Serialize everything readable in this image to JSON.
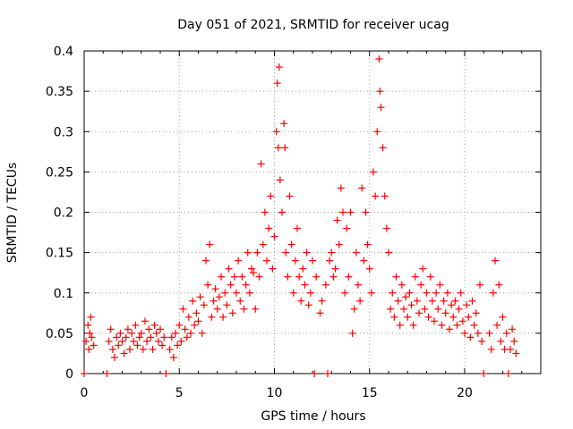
{
  "chart_data": {
    "type": "scatter",
    "title": "Day 051 of 2021, SRMTID for receiver ucag",
    "xlabel": "GPS time / hours",
    "ylabel": "SRMTID / TECUs",
    "xlim": [
      0,
      24
    ],
    "ylim": [
      0,
      0.4
    ],
    "x_ticks": [
      0,
      5,
      10,
      15,
      20
    ],
    "y_ticks": [
      0,
      0.05,
      0.1,
      0.15,
      0.2,
      0.25,
      0.3,
      0.35,
      0.4
    ],
    "x_tick_labels": [
      "0",
      "5",
      "10",
      "15",
      "20"
    ],
    "y_tick_labels": [
      "0",
      "0.05",
      "0.1",
      "0.15",
      "0.2",
      "0.25",
      "0.3",
      "0.35",
      "0.4"
    ],
    "grid": true,
    "marker": "+",
    "color": "#ff0000",
    "series": [
      {
        "name": "SRMTID",
        "points": [
          [
            0.0,
            0.0
          ],
          [
            0.1,
            0.04
          ],
          [
            0.2,
            0.06
          ],
          [
            0.25,
            0.03
          ],
          [
            0.3,
            0.05
          ],
          [
            0.35,
            0.07
          ],
          [
            0.4,
            0.045
          ],
          [
            0.5,
            0.035
          ],
          [
            1.2,
            0.0
          ],
          [
            1.3,
            0.04
          ],
          [
            1.4,
            0.055
          ],
          [
            1.5,
            0.03
          ],
          [
            1.6,
            0.02
          ],
          [
            1.7,
            0.045
          ],
          [
            1.8,
            0.035
          ],
          [
            1.9,
            0.05
          ],
          [
            2.0,
            0.04
          ],
          [
            2.1,
            0.025
          ],
          [
            2.2,
            0.045
          ],
          [
            2.3,
            0.055
          ],
          [
            2.4,
            0.03
          ],
          [
            2.5,
            0.05
          ],
          [
            2.6,
            0.04
          ],
          [
            2.7,
            0.06
          ],
          [
            2.8,
            0.035
          ],
          [
            2.9,
            0.045
          ],
          [
            3.0,
            0.05
          ],
          [
            3.1,
            0.03
          ],
          [
            3.2,
            0.065
          ],
          [
            3.3,
            0.04
          ],
          [
            3.4,
            0.055
          ],
          [
            3.5,
            0.045
          ],
          [
            3.6,
            0.03
          ],
          [
            3.7,
            0.06
          ],
          [
            3.8,
            0.05
          ],
          [
            3.9,
            0.04
          ],
          [
            4.0,
            0.055
          ],
          [
            4.1,
            0.035
          ],
          [
            4.2,
            0.045
          ],
          [
            4.3,
            0.0
          ],
          [
            4.5,
            0.03
          ],
          [
            4.6,
            0.045
          ],
          [
            4.7,
            0.02
          ],
          [
            4.8,
            0.05
          ],
          [
            4.9,
            0.035
          ],
          [
            5.0,
            0.06
          ],
          [
            5.1,
            0.04
          ],
          [
            5.2,
            0.08
          ],
          [
            5.3,
            0.055
          ],
          [
            5.4,
            0.045
          ],
          [
            5.5,
            0.07
          ],
          [
            5.6,
            0.05
          ],
          [
            5.7,
            0.09
          ],
          [
            5.8,
            0.06
          ],
          [
            5.9,
            0.075
          ],
          [
            6.0,
            0.065
          ],
          [
            6.1,
            0.095
          ],
          [
            6.2,
            0.05
          ],
          [
            6.3,
            0.085
          ],
          [
            6.4,
            0.14
          ],
          [
            6.5,
            0.11
          ],
          [
            6.6,
            0.16
          ],
          [
            6.7,
            0.07
          ],
          [
            6.8,
            0.09
          ],
          [
            6.9,
            0.105
          ],
          [
            7.0,
            0.08
          ],
          [
            7.1,
            0.095
          ],
          [
            7.2,
            0.12
          ],
          [
            7.3,
            0.07
          ],
          [
            7.4,
            0.1
          ],
          [
            7.5,
            0.085
          ],
          [
            7.6,
            0.13
          ],
          [
            7.7,
            0.11
          ],
          [
            7.8,
            0.075
          ],
          [
            7.9,
            0.12
          ],
          [
            8.0,
            0.1
          ],
          [
            8.1,
            0.14
          ],
          [
            8.2,
            0.09
          ],
          [
            8.3,
            0.12
          ],
          [
            8.4,
            0.08
          ],
          [
            8.5,
            0.11
          ],
          [
            8.6,
            0.15
          ],
          [
            8.7,
            0.1
          ],
          [
            8.8,
            0.13
          ],
          [
            8.9,
            0.125
          ],
          [
            9.0,
            0.08
          ],
          [
            9.1,
            0.15
          ],
          [
            9.2,
            0.12
          ],
          [
            9.3,
            0.26
          ],
          [
            9.4,
            0.16
          ],
          [
            9.5,
            0.2
          ],
          [
            9.6,
            0.14
          ],
          [
            9.7,
            0.18
          ],
          [
            9.8,
            0.22
          ],
          [
            9.9,
            0.13
          ],
          [
            10.0,
            0.17
          ],
          [
            10.1,
            0.3
          ],
          [
            10.15,
            0.36
          ],
          [
            10.2,
            0.28
          ],
          [
            10.25,
            0.38
          ],
          [
            10.3,
            0.24
          ],
          [
            10.4,
            0.2
          ],
          [
            10.5,
            0.31
          ],
          [
            10.55,
            0.28
          ],
          [
            10.6,
            0.15
          ],
          [
            10.7,
            0.12
          ],
          [
            10.8,
            0.22
          ],
          [
            10.9,
            0.16
          ],
          [
            11.0,
            0.1
          ],
          [
            11.1,
            0.14
          ],
          [
            11.2,
            0.18
          ],
          [
            11.3,
            0.12
          ],
          [
            11.4,
            0.09
          ],
          [
            11.5,
            0.13
          ],
          [
            11.6,
            0.11
          ],
          [
            11.7,
            0.15
          ],
          [
            11.8,
            0.085
          ],
          [
            11.9,
            0.1
          ],
          [
            12.0,
            0.14
          ],
          [
            12.1,
            0.0
          ],
          [
            12.2,
            0.12
          ],
          [
            12.4,
            0.075
          ],
          [
            12.5,
            0.09
          ],
          [
            12.7,
            0.11
          ],
          [
            12.8,
            0.0
          ],
          [
            12.9,
            0.14
          ],
          [
            13.0,
            0.15
          ],
          [
            13.1,
            0.12
          ],
          [
            13.2,
            0.13
          ],
          [
            13.3,
            0.19
          ],
          [
            13.4,
            0.16
          ],
          [
            13.5,
            0.23
          ],
          [
            13.6,
            0.2
          ],
          [
            13.7,
            0.1
          ],
          [
            13.8,
            0.18
          ],
          [
            13.9,
            0.12
          ],
          [
            14.0,
            0.2
          ],
          [
            14.1,
            0.05
          ],
          [
            14.2,
            0.08
          ],
          [
            14.3,
            0.15
          ],
          [
            14.4,
            0.11
          ],
          [
            14.5,
            0.09
          ],
          [
            14.6,
            0.23
          ],
          [
            14.7,
            0.14
          ],
          [
            14.8,
            0.2
          ],
          [
            14.9,
            0.16
          ],
          [
            15.0,
            0.13
          ],
          [
            15.1,
            0.1
          ],
          [
            15.2,
            0.25
          ],
          [
            15.3,
            0.22
          ],
          [
            15.4,
            0.3
          ],
          [
            15.5,
            0.39
          ],
          [
            15.55,
            0.35
          ],
          [
            15.6,
            0.33
          ],
          [
            15.7,
            0.28
          ],
          [
            15.8,
            0.22
          ],
          [
            15.9,
            0.18
          ],
          [
            16.0,
            0.15
          ],
          [
            16.1,
            0.08
          ],
          [
            16.2,
            0.1
          ],
          [
            16.3,
            0.07
          ],
          [
            16.4,
            0.12
          ],
          [
            16.5,
            0.09
          ],
          [
            16.6,
            0.06
          ],
          [
            16.7,
            0.11
          ],
          [
            16.8,
            0.08
          ],
          [
            16.9,
            0.095
          ],
          [
            17.0,
            0.07
          ],
          [
            17.1,
            0.1
          ],
          [
            17.2,
            0.085
          ],
          [
            17.3,
            0.06
          ],
          [
            17.4,
            0.12
          ],
          [
            17.5,
            0.09
          ],
          [
            17.6,
            0.075
          ],
          [
            17.7,
            0.11
          ],
          [
            17.8,
            0.13
          ],
          [
            17.9,
            0.08
          ],
          [
            18.0,
            0.1
          ],
          [
            18.1,
            0.07
          ],
          [
            18.2,
            0.12
          ],
          [
            18.3,
            0.09
          ],
          [
            18.4,
            0.065
          ],
          [
            18.5,
            0.1
          ],
          [
            18.6,
            0.08
          ],
          [
            18.7,
            0.11
          ],
          [
            18.8,
            0.06
          ],
          [
            18.9,
            0.09
          ],
          [
            19.0,
            0.075
          ],
          [
            19.1,
            0.1
          ],
          [
            19.2,
            0.055
          ],
          [
            19.3,
            0.085
          ],
          [
            19.4,
            0.07
          ],
          [
            19.5,
            0.09
          ],
          [
            19.6,
            0.06
          ],
          [
            19.7,
            0.08
          ],
          [
            19.8,
            0.1
          ],
          [
            19.9,
            0.065
          ],
          [
            20.0,
            0.05
          ],
          [
            20.1,
            0.085
          ],
          [
            20.2,
            0.07
          ],
          [
            20.3,
            0.045
          ],
          [
            20.4,
            0.09
          ],
          [
            20.5,
            0.06
          ],
          [
            20.6,
            0.075
          ],
          [
            20.7,
            0.05
          ],
          [
            20.8,
            0.11
          ],
          [
            20.9,
            0.04
          ],
          [
            21.0,
            0.0
          ],
          [
            21.3,
            0.05
          ],
          [
            21.4,
            0.03
          ],
          [
            21.5,
            0.1
          ],
          [
            21.6,
            0.14
          ],
          [
            21.7,
            0.06
          ],
          [
            21.8,
            0.11
          ],
          [
            21.9,
            0.04
          ],
          [
            22.0,
            0.07
          ],
          [
            22.1,
            0.03
          ],
          [
            22.2,
            0.05
          ],
          [
            22.3,
            0.0
          ],
          [
            22.4,
            0.03
          ],
          [
            22.5,
            0.055
          ],
          [
            22.6,
            0.04
          ],
          [
            22.7,
            0.025
          ]
        ]
      }
    ]
  }
}
